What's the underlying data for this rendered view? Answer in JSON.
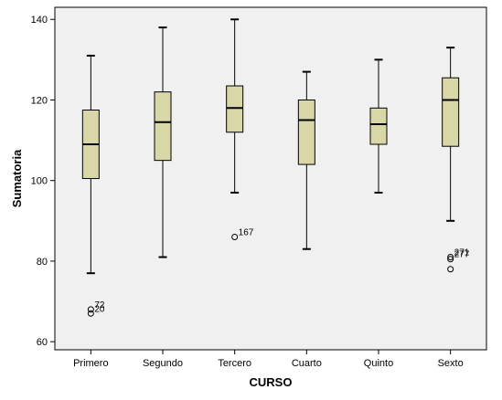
{
  "chart_data": {
    "type": "boxplot",
    "xlabel": "CURSO",
    "ylabel": "Sumatoria",
    "ylim": [
      58,
      143
    ],
    "yticks": [
      60,
      80,
      100,
      120,
      140
    ],
    "grid": false,
    "colors": {
      "box_fill": "#d9d6a8",
      "plot_bg": "#f0f0f0",
      "outline": "#000000"
    },
    "categories": [
      "Primero",
      "Segundo",
      "Tercero",
      "Cuarto",
      "Quinto",
      "Sexto"
    ],
    "boxes": [
      {
        "category": "Primero",
        "whisker_low": 77,
        "q1": 100.5,
        "median": 109,
        "q3": 117.5,
        "whisker_high": 131,
        "outliers": [
          {
            "value": 68,
            "label": "72"
          },
          {
            "value": 67,
            "label": "20"
          }
        ]
      },
      {
        "category": "Segundo",
        "whisker_low": 81,
        "q1": 105,
        "median": 114.5,
        "q3": 122,
        "whisker_high": 138,
        "outliers": []
      },
      {
        "category": "Tercero",
        "whisker_low": 97,
        "q1": 112,
        "median": 118,
        "q3": 123.5,
        "whisker_high": 140,
        "outliers": [
          {
            "value": 86,
            "label": "167"
          }
        ]
      },
      {
        "category": "Cuarto",
        "whisker_low": 83,
        "q1": 104,
        "median": 115,
        "q3": 120,
        "whisker_high": 127,
        "outliers": []
      },
      {
        "category": "Quinto",
        "whisker_low": 97,
        "q1": 109,
        "median": 114,
        "q3": 118,
        "whisker_high": 130,
        "outliers": []
      },
      {
        "category": "Sexto",
        "whisker_low": 90,
        "q1": 108.5,
        "median": 120,
        "q3": 125.5,
        "whisker_high": 133,
        "outliers": [
          {
            "value": 81,
            "label": "271"
          },
          {
            "value": 80.5,
            "label": "277"
          },
          {
            "value": 78,
            "label": ""
          }
        ]
      }
    ]
  }
}
